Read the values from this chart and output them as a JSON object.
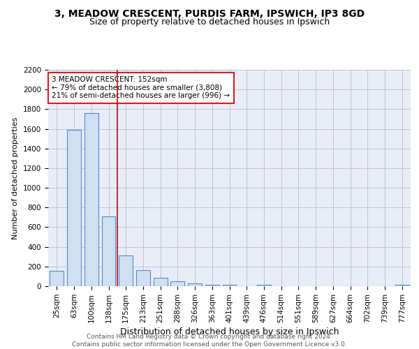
{
  "title1": "3, MEADOW CRESCENT, PURDIS FARM, IPSWICH, IP3 8GD",
  "title2": "Size of property relative to detached houses in Ipswich",
  "xlabel": "Distribution of detached houses by size in Ipswich",
  "ylabel": "Number of detached properties",
  "categories": [
    "25sqm",
    "63sqm",
    "100sqm",
    "138sqm",
    "175sqm",
    "213sqm",
    "251sqm",
    "288sqm",
    "326sqm",
    "363sqm",
    "401sqm",
    "439sqm",
    "476sqm",
    "514sqm",
    "551sqm",
    "589sqm",
    "627sqm",
    "664sqm",
    "702sqm",
    "739sqm",
    "777sqm"
  ],
  "values": [
    155,
    1590,
    1760,
    710,
    315,
    160,
    85,
    50,
    25,
    15,
    15,
    0,
    15,
    0,
    0,
    0,
    0,
    0,
    0,
    0,
    15
  ],
  "bar_color": "#d0dff2",
  "bar_edge_color": "#5588cc",
  "red_line_x": 3.5,
  "annotation_text": "3 MEADOW CRESCENT: 152sqm\n← 79% of detached houses are smaller (3,808)\n21% of semi-detached houses are larger (996) →",
  "annotation_box_color": "#ffffff",
  "annotation_box_edge_color": "#cc2222",
  "ylim": [
    0,
    2200
  ],
  "yticks": [
    0,
    200,
    400,
    600,
    800,
    1000,
    1200,
    1400,
    1600,
    1800,
    2000,
    2200
  ],
  "grid_color": "#bbbbcc",
  "bg_color": "#e8edf8",
  "footer_text": "Contains HM Land Registry data © Crown copyright and database right 2024.\nContains public sector information licensed under the Open Government Licence v3.0.",
  "title1_fontsize": 10,
  "title2_fontsize": 9,
  "xlabel_fontsize": 9,
  "ylabel_fontsize": 8,
  "tick_fontsize": 7.5,
  "footer_fontsize": 6.5
}
